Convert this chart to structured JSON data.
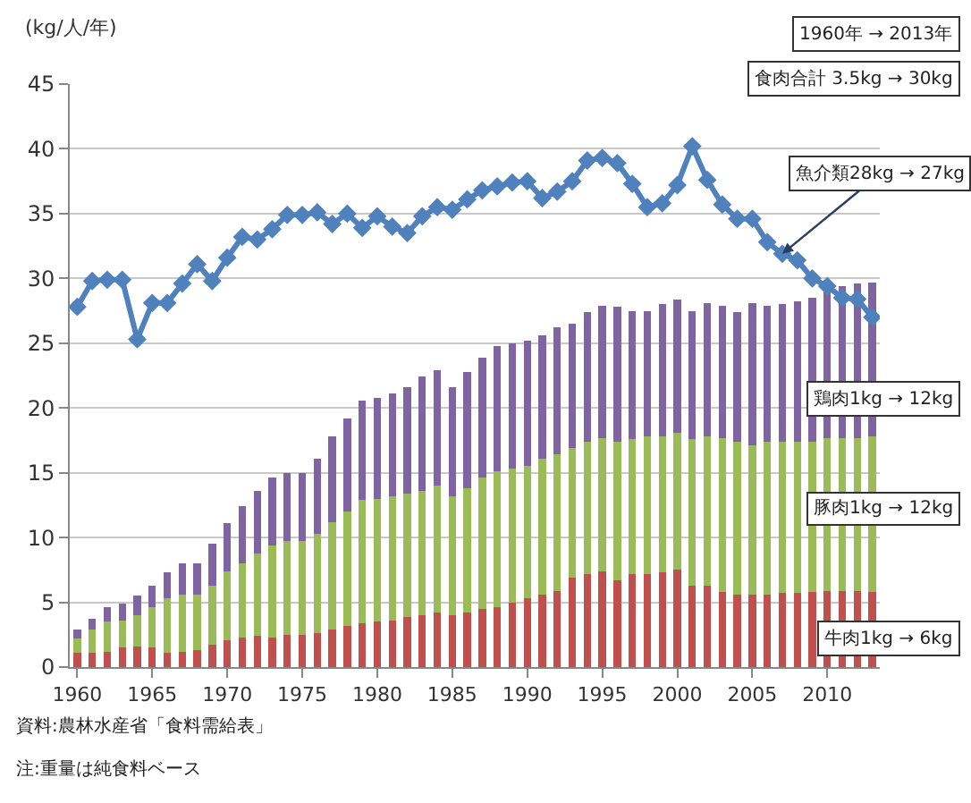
{
  "chart_data": {
    "type": "bar",
    "stacked": true,
    "ylabel": "(kg/人/年)",
    "x": [
      1960,
      1961,
      1962,
      1963,
      1964,
      1965,
      1966,
      1967,
      1968,
      1969,
      1970,
      1971,
      1972,
      1973,
      1974,
      1975,
      1976,
      1977,
      1978,
      1979,
      1980,
      1981,
      1982,
      1983,
      1984,
      1985,
      1986,
      1987,
      1988,
      1989,
      1990,
      1991,
      1992,
      1993,
      1994,
      1995,
      1996,
      1997,
      1998,
      1999,
      2000,
      2001,
      2002,
      2003,
      2004,
      2005,
      2006,
      2007,
      2008,
      2009,
      2010,
      2011,
      2012,
      2013
    ],
    "series": [
      {
        "color": "#c0504d",
        "values": [
          1.1,
          1.1,
          1.2,
          1.5,
          1.6,
          1.5,
          1.1,
          1.2,
          1.3,
          1.7,
          2.1,
          2.3,
          2.4,
          2.3,
          2.5,
          2.5,
          2.6,
          2.9,
          3.2,
          3.4,
          3.5,
          3.6,
          3.9,
          4.0,
          4.2,
          4.0,
          4.2,
          4.5,
          4.6,
          5.0,
          5.3,
          5.6,
          5.9,
          6.9,
          7.2,
          7.4,
          6.7,
          7.2,
          7.2,
          7.3,
          7.5,
          6.3,
          6.3,
          5.8,
          5.6,
          5.6,
          5.6,
          5.7,
          5.7,
          5.8,
          5.9,
          5.9,
          5.9,
          5.8
        ]
      },
      {
        "color": "#9bbb59",
        "values": [
          1.1,
          1.8,
          2.3,
          2.1,
          2.4,
          3.1,
          4.2,
          4.4,
          4.3,
          4.6,
          5.3,
          5.7,
          6.4,
          7.1,
          7.2,
          7.2,
          7.7,
          8.3,
          8.8,
          9.5,
          9.5,
          9.6,
          9.5,
          9.6,
          9.8,
          9.2,
          9.6,
          10.1,
          10.5,
          10.3,
          10.2,
          10.5,
          10.5,
          10.0,
          10.2,
          10.3,
          10.7,
          10.4,
          10.6,
          10.5,
          10.6,
          11.3,
          11.5,
          11.9,
          11.8,
          11.5,
          11.8,
          11.7,
          11.7,
          11.6,
          11.8,
          11.8,
          11.8,
          12.0
        ]
      },
      {
        "color": "#8064a2",
        "values": [
          0.7,
          0.8,
          1.1,
          1.3,
          1.5,
          1.7,
          2.0,
          2.4,
          2.4,
          3.2,
          3.7,
          4.4,
          4.8,
          5.2,
          5.3,
          5.3,
          5.8,
          6.6,
          7.2,
          7.7,
          7.8,
          7.9,
          8.2,
          8.8,
          8.9,
          8.4,
          9.0,
          9.3,
          9.7,
          9.7,
          9.7,
          9.5,
          9.8,
          9.6,
          10.0,
          10.2,
          10.4,
          9.9,
          9.7,
          10.2,
          10.3,
          9.9,
          10.3,
          10.2,
          10.0,
          11.0,
          10.5,
          10.6,
          10.8,
          11.1,
          11.5,
          11.7,
          11.9,
          11.9
        ]
      },
      {
        "type": "line",
        "color": "#4f81bd",
        "marker": "diamond",
        "values": [
          27.8,
          29.8,
          29.9,
          29.9,
          25.3,
          28.1,
          28.1,
          29.6,
          31.1,
          29.8,
          31.6,
          33.2,
          33.0,
          33.8,
          34.9,
          34.9,
          35.1,
          34.2,
          35.0,
          33.9,
          34.8,
          34.0,
          33.5,
          34.8,
          35.5,
          35.3,
          36.1,
          36.8,
          37.1,
          37.4,
          37.5,
          36.2,
          36.7,
          37.5,
          39.1,
          39.3,
          38.9,
          37.3,
          35.5,
          35.8,
          37.2,
          40.2,
          37.6,
          35.7,
          34.6,
          34.6,
          32.8,
          31.9,
          31.4,
          30.0,
          29.4,
          28.5,
          28.4,
          27.0
        ]
      }
    ],
    "xlim": [
      1959.5,
      2013.5
    ],
    "xticks": [
      1960,
      1965,
      1970,
      1975,
      1980,
      1985,
      1990,
      1995,
      2000,
      2005,
      2010
    ],
    "ylim": [
      0,
      45
    ],
    "yticks": [
      0,
      5,
      10,
      15,
      20,
      25,
      30,
      35,
      40,
      45
    ],
    "grid": "y",
    "annotations": [
      "1960年 → 2013年",
      "食肉合計 3.5kg → 30kg",
      {
        "text": "魚介類28kg → 27kg",
        "x": 2007,
        "y": 31.9
      },
      "鶏肉1kg → 12kg",
      "豚肉1kg → 12kg",
      "牛肉1kg → 6kg",
      "資料:農林水産省「食料需給表」",
      "注:重量は純食料ベース"
    ]
  }
}
